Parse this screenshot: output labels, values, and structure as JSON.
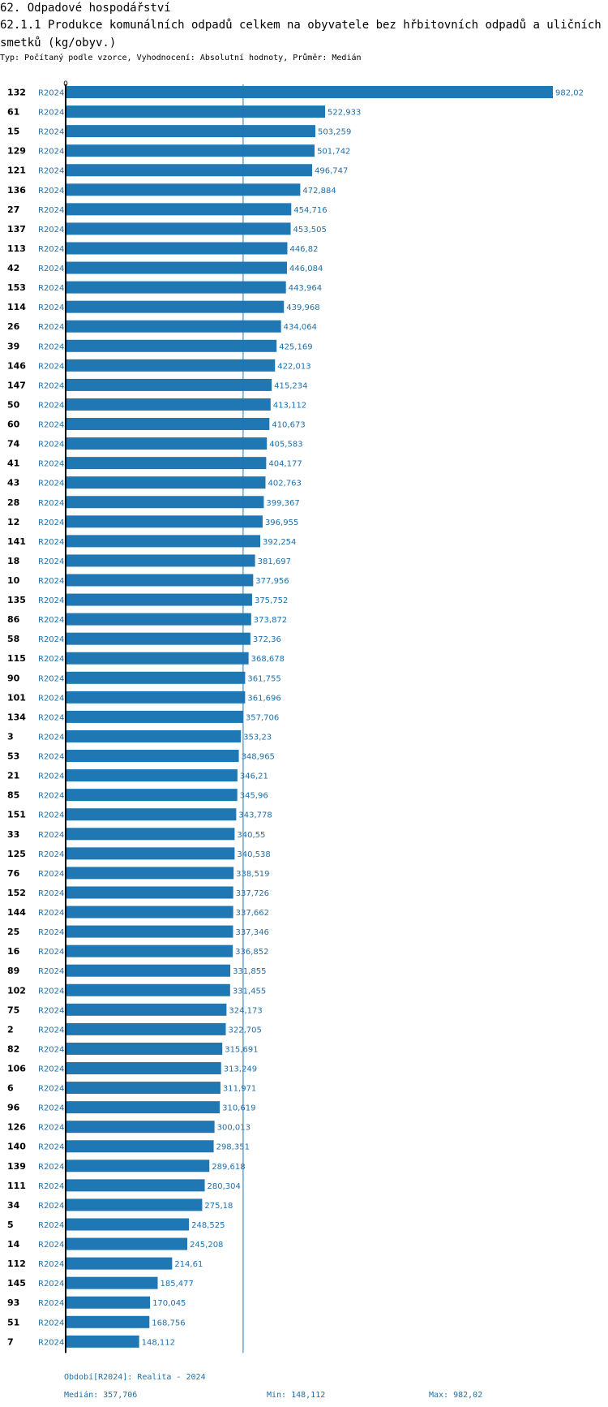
{
  "header": {
    "title": "62. Odpadové hospodářství",
    "subtitle": "62.1.1 Produkce komunálních odpadů celkem na obyvatele bez hřbitovních odpadů a uličních smetků (kg/obyv.)",
    "meta": "Typ: Počítaný podle vzorce, Vyhodnocení: Absolutní hodnoty, Průměr: Medián"
  },
  "chart_data": {
    "type": "bar",
    "orientation": "horizontal",
    "axis_zero_label": "0",
    "xlim": [
      0,
      982.02
    ],
    "median_line": 357.706,
    "bar_color": "#1f77b4",
    "label_color": "#1f6fab",
    "period_label": "R2024",
    "categories": [
      "132",
      "61",
      "15",
      "129",
      "121",
      "136",
      "27",
      "137",
      "113",
      "42",
      "153",
      "114",
      "26",
      "39",
      "146",
      "147",
      "50",
      "60",
      "74",
      "41",
      "43",
      "28",
      "12",
      "141",
      "18",
      "10",
      "135",
      "86",
      "58",
      "115",
      "90",
      "101",
      "134",
      "3",
      "53",
      "21",
      "85",
      "151",
      "33",
      "125",
      "76",
      "152",
      "144",
      "25",
      "16",
      "89",
      "102",
      "75",
      "2",
      "82",
      "106",
      "6",
      "96",
      "126",
      "140",
      "139",
      "111",
      "34",
      "5",
      "14",
      "112",
      "145",
      "93",
      "51",
      "7"
    ],
    "values": [
      982.02,
      522.933,
      503.259,
      501.742,
      496.747,
      472.884,
      454.716,
      453.505,
      446.82,
      446.084,
      443.964,
      439.968,
      434.064,
      425.169,
      422.013,
      415.234,
      413.112,
      410.673,
      405.583,
      404.177,
      402.763,
      399.367,
      396.955,
      392.254,
      381.697,
      377.956,
      375.752,
      373.872,
      372.36,
      368.678,
      361.755,
      361.696,
      357.706,
      353.23,
      348.965,
      346.21,
      345.96,
      343.778,
      340.55,
      340.538,
      338.519,
      337.726,
      337.662,
      337.346,
      336.852,
      331.855,
      331.455,
      324.173,
      322.705,
      315.691,
      313.249,
      311.971,
      310.619,
      300.013,
      298.351,
      289.618,
      280.304,
      275.18,
      248.525,
      245.208,
      214.61,
      185.477,
      170.045,
      168.756,
      148.112
    ],
    "value_labels": [
      "982,02",
      "522,933",
      "503,259",
      "501,742",
      "496,747",
      "472,884",
      "454,716",
      "453,505",
      "446,82",
      "446,084",
      "443,964",
      "439,968",
      "434,064",
      "425,169",
      "422,013",
      "415,234",
      "413,112",
      "410,673",
      "405,583",
      "404,177",
      "402,763",
      "399,367",
      "396,955",
      "392,254",
      "381,697",
      "377,956",
      "375,752",
      "373,872",
      "372,36",
      "368,678",
      "361,755",
      "361,696",
      "357,706",
      "353,23",
      "348,965",
      "346,21",
      "345,96",
      "343,778",
      "340,55",
      "340,538",
      "338,519",
      "337,726",
      "337,662",
      "337,346",
      "336,852",
      "331,855",
      "331,455",
      "324,173",
      "322,705",
      "315,691",
      "313,249",
      "311,971",
      "310,619",
      "300,013",
      "298,351",
      "289,618",
      "280,304",
      "275,18",
      "248,525",
      "245,208",
      "214,61",
      "185,477",
      "170,045",
      "168,756",
      "148,112"
    ]
  },
  "footer": {
    "period": "Období[R2024]: Realita - 2024",
    "median": "Medián: 357,706",
    "min": "Min: 148,112",
    "max": "Max: 982,02"
  }
}
